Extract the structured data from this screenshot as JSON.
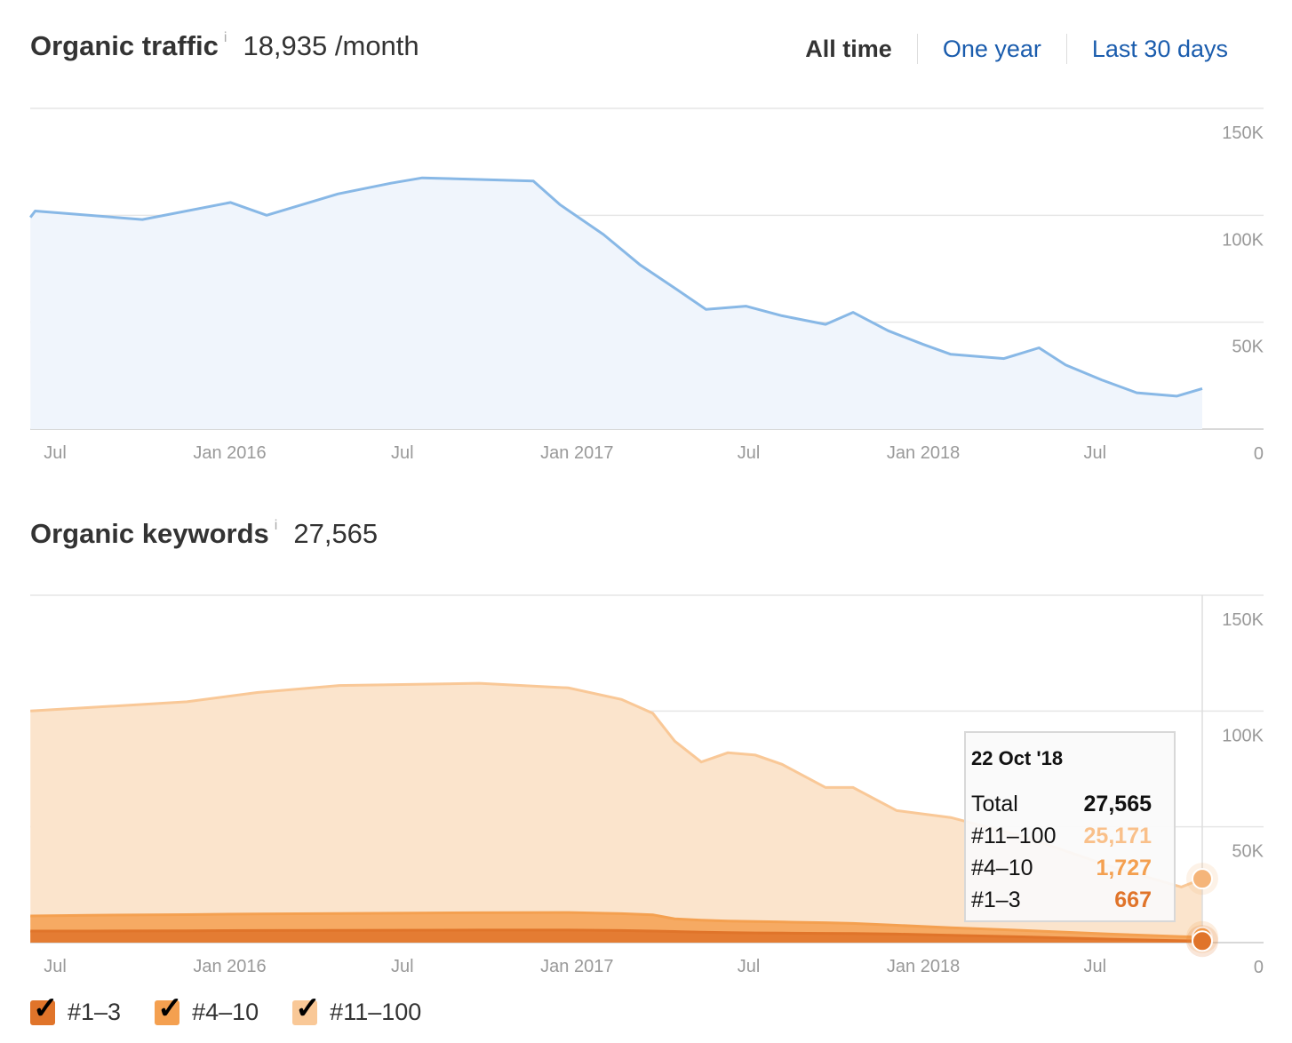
{
  "traffic": {
    "title": "Organic traffic",
    "info_icon": "i",
    "value": "18,935 /month",
    "ranges": [
      {
        "label": "All time",
        "active": true
      },
      {
        "label": "One year",
        "active": false
      },
      {
        "label": "Last 30 days",
        "active": false
      }
    ]
  },
  "keywords": {
    "title": "Organic keywords",
    "info_icon": "i",
    "value": "27,565"
  },
  "tooltip": {
    "date": "22 Oct '18",
    "rows": [
      {
        "label": "Total",
        "value": "27,565",
        "color": "#111111"
      },
      {
        "label": "#11–100",
        "value": "25,171",
        "color": "#f9c08a"
      },
      {
        "label": "#4–10",
        "value": "1,727",
        "color": "#f4a050"
      },
      {
        "label": "#1–3",
        "value": "667",
        "color": "#e0742a"
      }
    ]
  },
  "legend": [
    {
      "label": "#1–3",
      "checked": true,
      "color": "#e0742a"
    },
    {
      "label": "#4–10",
      "checked": true,
      "color": "#f4a050"
    },
    {
      "label": "#11–100",
      "checked": true,
      "color": "#f9c897"
    }
  ],
  "chart_data": [
    {
      "type": "area",
      "title": "Organic traffic",
      "ylim": [
        0,
        150000
      ],
      "y_ticks": [
        {
          "v": 150000,
          "label": "150K"
        },
        {
          "v": 100000,
          "label": "100K"
        },
        {
          "v": 50000,
          "label": "50K"
        },
        {
          "v": 0,
          "label": "0"
        }
      ],
      "x_ticks": [
        {
          "d": "2015-07-01",
          "label": "Jul"
        },
        {
          "d": "2016-01-01",
          "label": "Jan 2016"
        },
        {
          "d": "2016-07-01",
          "label": "Jul"
        },
        {
          "d": "2017-01-01",
          "label": "Jan 2017"
        },
        {
          "d": "2017-07-01",
          "label": "Jul"
        },
        {
          "d": "2018-01-01",
          "label": "Jan 2018"
        },
        {
          "d": "2018-07-01",
          "label": "Jul"
        }
      ],
      "grid": true,
      "line_color": "#88b8e6",
      "fill_color": "#f0f5fc",
      "points": [
        [
          "2015-06-05",
          99000
        ],
        [
          "2015-06-10",
          102000
        ],
        [
          "2015-10-01",
          98000
        ],
        [
          "2016-01-02",
          106000
        ],
        [
          "2016-02-09",
          100000
        ],
        [
          "2016-04-24",
          110000
        ],
        [
          "2016-06-19",
          115000
        ],
        [
          "2016-07-22",
          117500
        ],
        [
          "2016-11-16",
          116000
        ],
        [
          "2016-12-14",
          105000
        ],
        [
          "2017-01-29",
          91000
        ],
        [
          "2017-03-08",
          77000
        ],
        [
          "2017-04-14",
          66000
        ],
        [
          "2017-05-17",
          56000
        ],
        [
          "2017-06-28",
          57500
        ],
        [
          "2017-08-05",
          53000
        ],
        [
          "2017-09-20",
          49000
        ],
        [
          "2017-10-19",
          54600
        ],
        [
          "2017-11-25",
          46000
        ],
        [
          "2018-01-01",
          39600
        ],
        [
          "2018-01-30",
          35000
        ],
        [
          "2018-03-27",
          33000
        ],
        [
          "2018-05-03",
          38000
        ],
        [
          "2018-05-31",
          30000
        ],
        [
          "2018-07-08",
          23000
        ],
        [
          "2018-08-14",
          17000
        ],
        [
          "2018-09-25",
          15400
        ],
        [
          "2018-10-22",
          18935
        ]
      ]
    },
    {
      "type": "area",
      "stacked": true,
      "title": "Organic keywords",
      "ylim": [
        0,
        150000
      ],
      "y_ticks": [
        {
          "v": 150000,
          "label": "150K"
        },
        {
          "v": 100000,
          "label": "100K"
        },
        {
          "v": 50000,
          "label": "50K"
        },
        {
          "v": 0,
          "label": "0"
        }
      ],
      "x_ticks": [
        {
          "d": "2015-07-01",
          "label": "Jul"
        },
        {
          "d": "2016-01-01",
          "label": "Jan 2016"
        },
        {
          "d": "2016-07-01",
          "label": "Jul"
        },
        {
          "d": "2017-01-01",
          "label": "Jan 2017"
        },
        {
          "d": "2017-07-01",
          "label": "Jul"
        },
        {
          "d": "2018-01-01",
          "label": "Jan 2018"
        },
        {
          "d": "2018-07-01",
          "label": "Jul"
        }
      ],
      "grid": true,
      "dates": [
        "2015-06-05",
        "2015-08-06",
        "2015-11-17",
        "2016-01-30",
        "2016-04-24",
        "2016-09-20",
        "2016-12-23",
        "2017-02-17",
        "2017-03-22",
        "2017-04-14",
        "2017-05-12",
        "2017-06-09",
        "2017-07-08",
        "2017-08-05",
        "2017-09-20",
        "2017-10-19",
        "2017-12-04",
        "2018-01-30",
        "2018-04-15",
        "2018-07-17",
        "2018-09-30",
        "2018-10-22"
      ],
      "series": [
        {
          "name": "#1–3",
          "color": "#e0742a",
          "values": [
            5000,
            5000,
            5100,
            5200,
            5300,
            5400,
            5400,
            5200,
            5000,
            4800,
            4500,
            4300,
            4200,
            4100,
            4000,
            3900,
            3700,
            3200,
            2500,
            1500,
            800,
            667
          ]
        },
        {
          "name": "#4–10",
          "color": "#f4a050",
          "values": [
            6500,
            6800,
            7000,
            7200,
            7300,
            7500,
            7600,
            7300,
            7000,
            5500,
            5200,
            5000,
            4900,
            4800,
            4600,
            4400,
            3800,
            3200,
            2800,
            2200,
            1800,
            1727
          ]
        },
        {
          "name": "#11–100",
          "color": "#f9c897",
          "fill": "#fbe4cc",
          "values": [
            88500,
            89700,
            91900,
            95600,
            98400,
            99100,
            97000,
            92500,
            87000,
            76700,
            68300,
            72700,
            71900,
            68100,
            58400,
            58700,
            49500,
            47600,
            40700,
            29300,
            21400,
            25171
          ]
        }
      ],
      "hover_date": "2018-10-22"
    }
  ]
}
